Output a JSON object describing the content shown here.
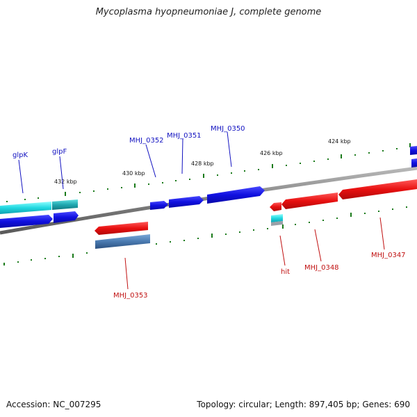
{
  "title": "Mycoplasma hyopneumoniae J, complete genome",
  "footer": {
    "accession": "Accession: NC_007295",
    "summary": "Topology: circular; Length: 897,405 bp; Genes: 690"
  },
  "colors": {
    "forward_gene": "#1010e0",
    "reverse_gene": "#e81010",
    "rna_gene": "#20d8e0",
    "steel_gene": "#4a7ab0",
    "backbone": "#808080",
    "tick": "#1a7a1a",
    "forward_label": "#1010c0",
    "reverse_label": "#c01010"
  },
  "scale": {
    "unit": "kbp",
    "ticks": [
      {
        "kbp": 424,
        "label": "424 kbp"
      },
      {
        "kbp": 426,
        "label": "426 kbp"
      },
      {
        "kbp": 428,
        "label": "428 kbp"
      },
      {
        "kbp": 430,
        "label": "430 kbp"
      },
      {
        "kbp": 432,
        "label": "432 kbp"
      }
    ]
  },
  "genes": {
    "forward": [
      {
        "name": "glpK",
        "color": "rna_gene"
      },
      {
        "name": "glpF",
        "color": "rna_gene"
      },
      {
        "name": "MHJ_0352",
        "color": "forward_gene"
      },
      {
        "name": "MHJ_0351",
        "color": "forward_gene"
      },
      {
        "name": "MHJ_0350",
        "color": "forward_gene"
      }
    ],
    "reverse": [
      {
        "name": "MHJ_0353",
        "color": "reverse_gene"
      },
      {
        "name": "hit",
        "color": "reverse_gene"
      },
      {
        "name": "MHJ_0348",
        "color": "reverse_gene"
      },
      {
        "name": "MHJ_0347",
        "color": "reverse_gene"
      }
    ]
  }
}
